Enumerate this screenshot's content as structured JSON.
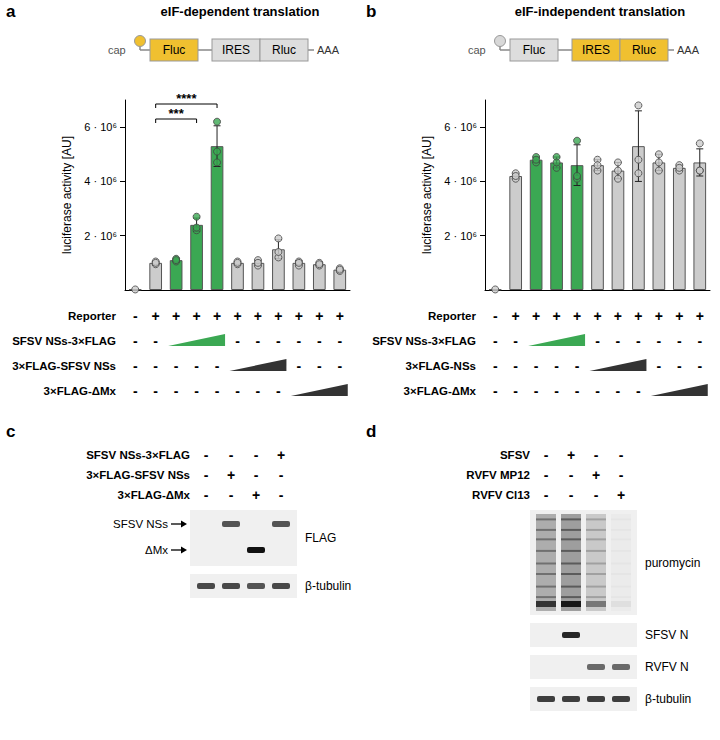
{
  "chart_data": [
    {
      "type": "bar",
      "title": "eIF-dependent translation",
      "ylabel": "luciferase activity [AU]",
      "categories": [
        null,
        null,
        null,
        null,
        null,
        null,
        null,
        null,
        null,
        null,
        null
      ],
      "values": [
        20000,
        1000000,
        1100000,
        2400000,
        5300000,
        1000000,
        1000000,
        1500000,
        1000000,
        950000,
        750000
      ],
      "errors": [
        0,
        50000,
        50000,
        250000,
        750000,
        50000,
        100000,
        350000,
        80000,
        50000,
        50000
      ],
      "points": [
        [
          20000
        ],
        [
          950000,
          1050000,
          1000000
        ],
        [
          1050000,
          1150000,
          1100000
        ],
        [
          2200000,
          2700000,
          2300000
        ],
        [
          4700000,
          5100000,
          6200000
        ],
        [
          950000,
          1050000,
          1000000
        ],
        [
          900000,
          1100000,
          1000000
        ],
        [
          1200000,
          1900000,
          1400000
        ],
        [
          900000,
          1050000,
          1000000
        ],
        [
          900000,
          1000000,
          950000
        ],
        [
          700000,
          800000,
          750000
        ]
      ],
      "colors": [
        "#cccccc",
        "#cccccc",
        "#3ba853",
        "#3ba853",
        "#3ba853",
        "#cccccc",
        "#cccccc",
        "#cccccc",
        "#cccccc",
        "#cccccc",
        "#cccccc"
      ],
      "ylim": [
        0,
        7000000
      ],
      "yticks": [
        {
          "value": 2000000,
          "label": "2 · 10⁶"
        },
        {
          "value": 4000000,
          "label": "4 · 10⁶"
        },
        {
          "value": 6000000,
          "label": "6 · 10⁶"
        }
      ],
      "annotations": [
        {
          "text": "***",
          "from": 1,
          "to": 3
        },
        {
          "text": "****",
          "from": 1,
          "to": 4
        }
      ]
    },
    {
      "type": "bar",
      "title": "eIF-independent translation",
      "ylabel": "luciferase activity [AU]",
      "categories": [
        null,
        null,
        null,
        null,
        null,
        null,
        null,
        null,
        null,
        null,
        null
      ],
      "values": [
        20000,
        4200000,
        4800000,
        4700000,
        4600000,
        4600000,
        4400000,
        5300000,
        4700000,
        4500000,
        4700000
      ],
      "errors": [
        0,
        100000,
        100000,
        200000,
        750000,
        200000,
        300000,
        1300000,
        300000,
        100000,
        500000
      ],
      "points": [
        [
          20000
        ],
        [
          4100000,
          4300000,
          4200000
        ],
        [
          4700000,
          4900000,
          4800000
        ],
        [
          4500000,
          4900000,
          4700000
        ],
        [
          4100000,
          5500000,
          4200000
        ],
        [
          4400000,
          4800000,
          4600000
        ],
        [
          4100000,
          4700000,
          4400000
        ],
        [
          4300000,
          6800000,
          4800000
        ],
        [
          4400000,
          5000000,
          4700000
        ],
        [
          4400000,
          4600000,
          4500000
        ],
        [
          4400000,
          5400000,
          4400000
        ]
      ],
      "colors": [
        "#cccccc",
        "#cccccc",
        "#3ba853",
        "#3ba853",
        "#3ba853",
        "#cccccc",
        "#cccccc",
        "#cccccc",
        "#cccccc",
        "#cccccc",
        "#cccccc"
      ],
      "ylim": [
        0,
        7000000
      ],
      "yticks": [
        {
          "value": 2000000,
          "label": "2 · 10⁶"
        },
        {
          "value": 4000000,
          "label": "4 · 10⁶"
        },
        {
          "value": 6000000,
          "label": "6 · 10⁶"
        }
      ],
      "annotations": []
    }
  ],
  "panels": [
    {
      "letter": "a",
      "cap": {
        "label": "cap",
        "color": "#f0c030"
      },
      "parts": [
        {
          "label": "Fluc",
          "color": "#f0c030"
        },
        {
          "label": "IRES",
          "color": "#dddddd"
        },
        {
          "label": "Rluc",
          "color": "#dddddd"
        }
      ],
      "tail": "AAA",
      "conditions": [
        {
          "name": "Reporter",
          "marks": [
            "-",
            "+",
            "+",
            "+",
            "+",
            "+",
            "+",
            "+",
            "+",
            "+",
            "+"
          ]
        },
        {
          "name": "SFSV NSs-3×FLAG",
          "marks": [
            "-",
            "-",
            null,
            null,
            null,
            "-",
            "-",
            "-",
            "-",
            "-",
            "-"
          ],
          "ramp_color": "#3ba853"
        },
        {
          "name": "3×FLAG-SFSV NSs",
          "marks": [
            "-",
            "-",
            "-",
            "-",
            "-",
            null,
            null,
            null,
            "-",
            "-",
            "-"
          ],
          "ramp_color": "#333333"
        },
        {
          "name": "3×FLAG-ΔMx",
          "marks": [
            "-",
            "-",
            "-",
            "-",
            "-",
            "-",
            "-",
            "-",
            null,
            null,
            null
          ],
          "ramp_color": "#333333"
        }
      ]
    },
    {
      "letter": "b",
      "cap": {
        "label": "cap",
        "color": "#d8d8d8"
      },
      "parts": [
        {
          "label": "Fluc",
          "color": "#dddddd"
        },
        {
          "label": "IRES",
          "color": "#f0c030"
        },
        {
          "label": "Rluc",
          "color": "#f0c030"
        }
      ],
      "tail": "AAA",
      "conditions": [
        {
          "name": "Reporter",
          "marks": [
            "-",
            "+",
            "+",
            "+",
            "+",
            "+",
            "+",
            "+",
            "+",
            "+",
            "+"
          ]
        },
        {
          "name": "SFSV NSs-3×FLAG",
          "marks": [
            "-",
            "-",
            null,
            null,
            null,
            "-",
            "-",
            "-",
            "-",
            "-",
            "-"
          ],
          "ramp_color": "#3ba853"
        },
        {
          "name": "3×FLAG-NSs",
          "marks": [
            "-",
            "-",
            "-",
            "-",
            "-",
            null,
            null,
            null,
            "-",
            "-",
            "-"
          ],
          "ramp_color": "#333333"
        },
        {
          "name": "3×FLAG-ΔMx",
          "marks": [
            "-",
            "-",
            "-",
            "-",
            "-",
            "-",
            "-",
            "-",
            null,
            null,
            null
          ],
          "ramp_color": "#333333"
        }
      ]
    },
    {
      "letter": "c",
      "conditions": [
        {
          "name": "SFSV NSs-3×FLAG",
          "marks": [
            "-",
            "-",
            "-",
            "+"
          ]
        },
        {
          "name": "3×FLAG-SFSV NSs",
          "marks": [
            "-",
            "+",
            "-",
            "-"
          ]
        },
        {
          "name": "3×FLAG-ΔMx",
          "marks": [
            "-",
            "-",
            "+",
            "-"
          ]
        }
      ],
      "blots": [
        {
          "name": "FLAG",
          "markers": [
            "SFSV NSs",
            "ΔMx"
          ],
          "bands": [
            [
              0,
              0.7,
              0,
              0.7
            ],
            [
              0,
              0,
              1,
              0
            ]
          ]
        },
        {
          "name": "β-tubulin",
          "bands": [
            [
              0.75,
              0.75,
              0.7,
              0.75
            ]
          ]
        }
      ]
    },
    {
      "letter": "d",
      "conditions": [
        {
          "name": "SFSV",
          "marks": [
            "-",
            "+",
            "-",
            "-"
          ]
        },
        {
          "name": "RVFV MP12",
          "marks": [
            "-",
            "-",
            "+",
            "-"
          ]
        },
        {
          "name": "RVFV Cl13",
          "marks": [
            "-",
            "-",
            "-",
            "+"
          ]
        }
      ],
      "blots": [
        {
          "name": "puromycin",
          "smear": [
            0.7,
            0.85,
            0.4,
            0.05
          ]
        },
        {
          "name": "SFSV N",
          "bands": [
            [
              0,
              0.9,
              0,
              0
            ]
          ]
        },
        {
          "name": "RVFV N",
          "bands": [
            [
              0,
              0,
              0.6,
              0.6
            ]
          ]
        },
        {
          "name": "β-tubulin",
          "bands": [
            [
              0.8,
              0.8,
              0.8,
              0.8
            ]
          ]
        }
      ]
    }
  ]
}
